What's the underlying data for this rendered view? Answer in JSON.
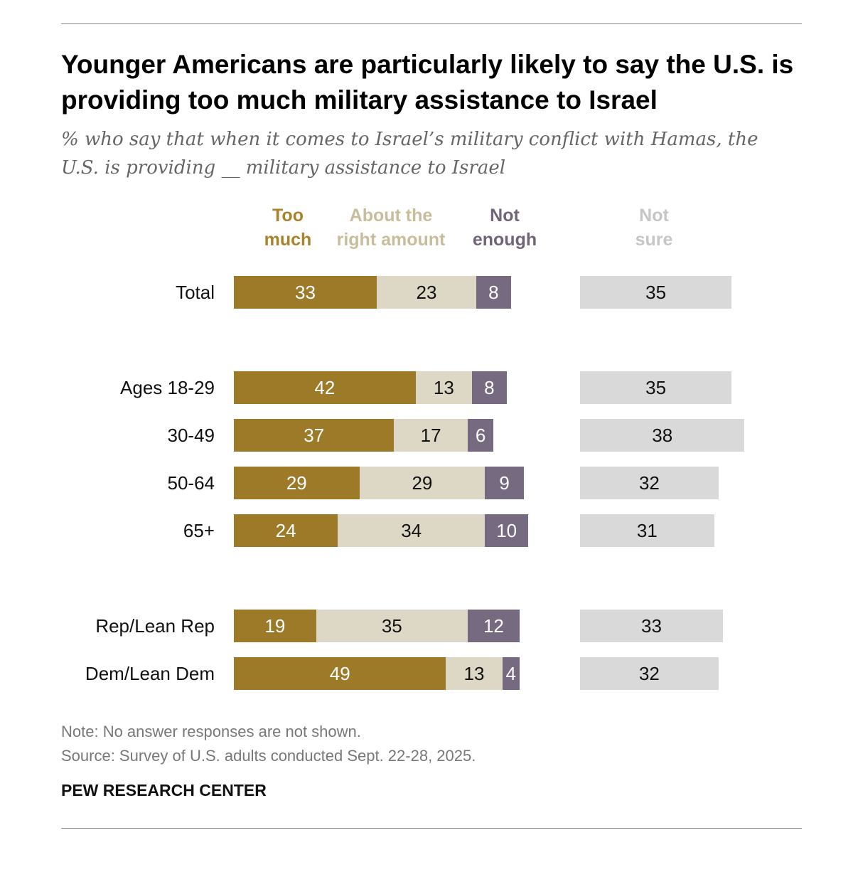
{
  "title": "Younger Americans are particularly likely to say the U.S. is providing too much military assistance to Israel",
  "subtitle": "% who say that when it comes to Israel’s military conflict with Hamas, the U.S. is providing __ military assistance to Israel",
  "chart_data": {
    "type": "bar",
    "orientation": "horizontal-stacked",
    "legend": [
      {
        "line1": "Too",
        "line2": "much",
        "color": "#9c7a28",
        "label_color": "#a8832a",
        "text_color": "#ffffff"
      },
      {
        "line1": "About the",
        "line2": "right amount",
        "color": "#ddd8c6",
        "label_color": "#c7bd9a",
        "text_color": "#111111"
      },
      {
        "line1": "Not",
        "line2": "enough",
        "color": "#756a80",
        "label_color": "#6f6478",
        "text_color": "#ffffff"
      },
      {
        "line1": "Not",
        "line2": "sure",
        "color": "#d9d9d9",
        "label_color": "#c6c6c6",
        "text_color": "#111111"
      }
    ],
    "categories": [
      "Total",
      "Ages 18-29",
      "30-49",
      "50-64",
      "65+",
      "Rep/Lean Rep",
      "Dem/Lean Dem"
    ],
    "series": [
      {
        "name": "Too much",
        "values": [
          33,
          42,
          37,
          29,
          24,
          19,
          49
        ]
      },
      {
        "name": "About the right amount",
        "values": [
          23,
          13,
          17,
          29,
          34,
          35,
          13
        ]
      },
      {
        "name": "Not enough",
        "values": [
          8,
          8,
          6,
          9,
          10,
          12,
          4
        ]
      },
      {
        "name": "Not sure",
        "values": [
          35,
          35,
          38,
          32,
          31,
          33,
          32
        ]
      }
    ],
    "xlim": [
      0,
      100
    ]
  },
  "notes": {
    "note": "Note: No answer responses are not shown.",
    "source": "Source: Survey of U.S. adults conducted Sept. 22-28, 2025.",
    "brand": "PEW RESEARCH CENTER"
  }
}
